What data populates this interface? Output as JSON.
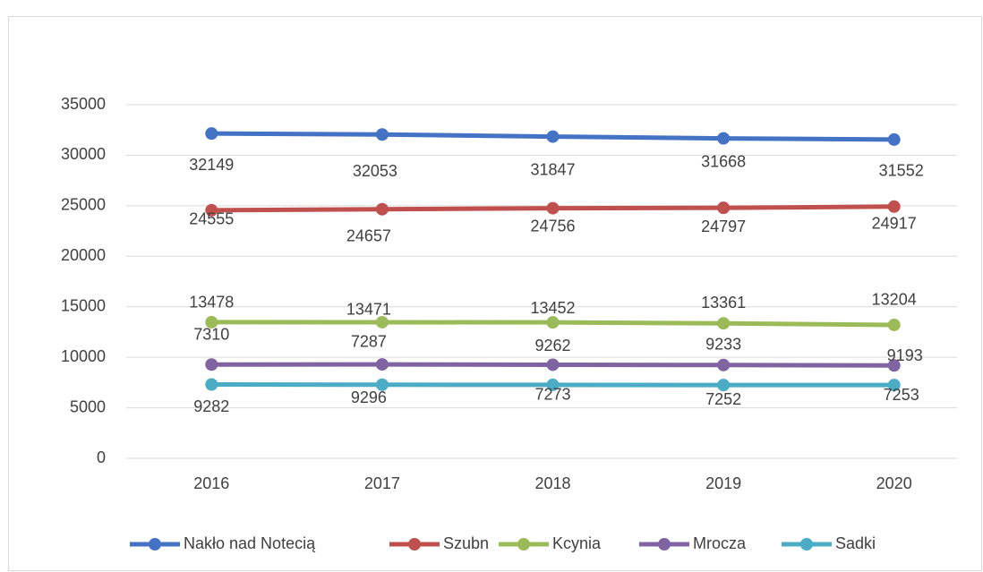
{
  "chart_data": {
    "type": "line",
    "categories": [
      "2016",
      "2017",
      "2018",
      "2019",
      "2020"
    ],
    "series": [
      {
        "name": "Nakło nad Notecią",
        "color": "#4472c4",
        "values": [
          32149,
          32053,
          31847,
          31668,
          31552
        ]
      },
      {
        "name": "Szubn",
        "color": "#c0504d",
        "values": [
          24555,
          24657,
          24756,
          24797,
          24917
        ]
      },
      {
        "name": "Kcynia",
        "color": "#9bbb59",
        "values": [
          13478,
          13471,
          13452,
          13361,
          13204
        ]
      },
      {
        "name": "Mrocza",
        "color": "#8064a2",
        "values": [
          9282,
          9296,
          9262,
          9233,
          9193
        ]
      },
      {
        "name": "Sadki",
        "color": "#4bacc6",
        "values": [
          7310,
          7287,
          7273,
          7252,
          7253
        ]
      }
    ],
    "ylim": [
      0,
      35000
    ],
    "yticks": [
      0,
      5000,
      10000,
      15000,
      20000,
      25000,
      30000,
      35000
    ],
    "grid": true,
    "legend": "bottom"
  }
}
